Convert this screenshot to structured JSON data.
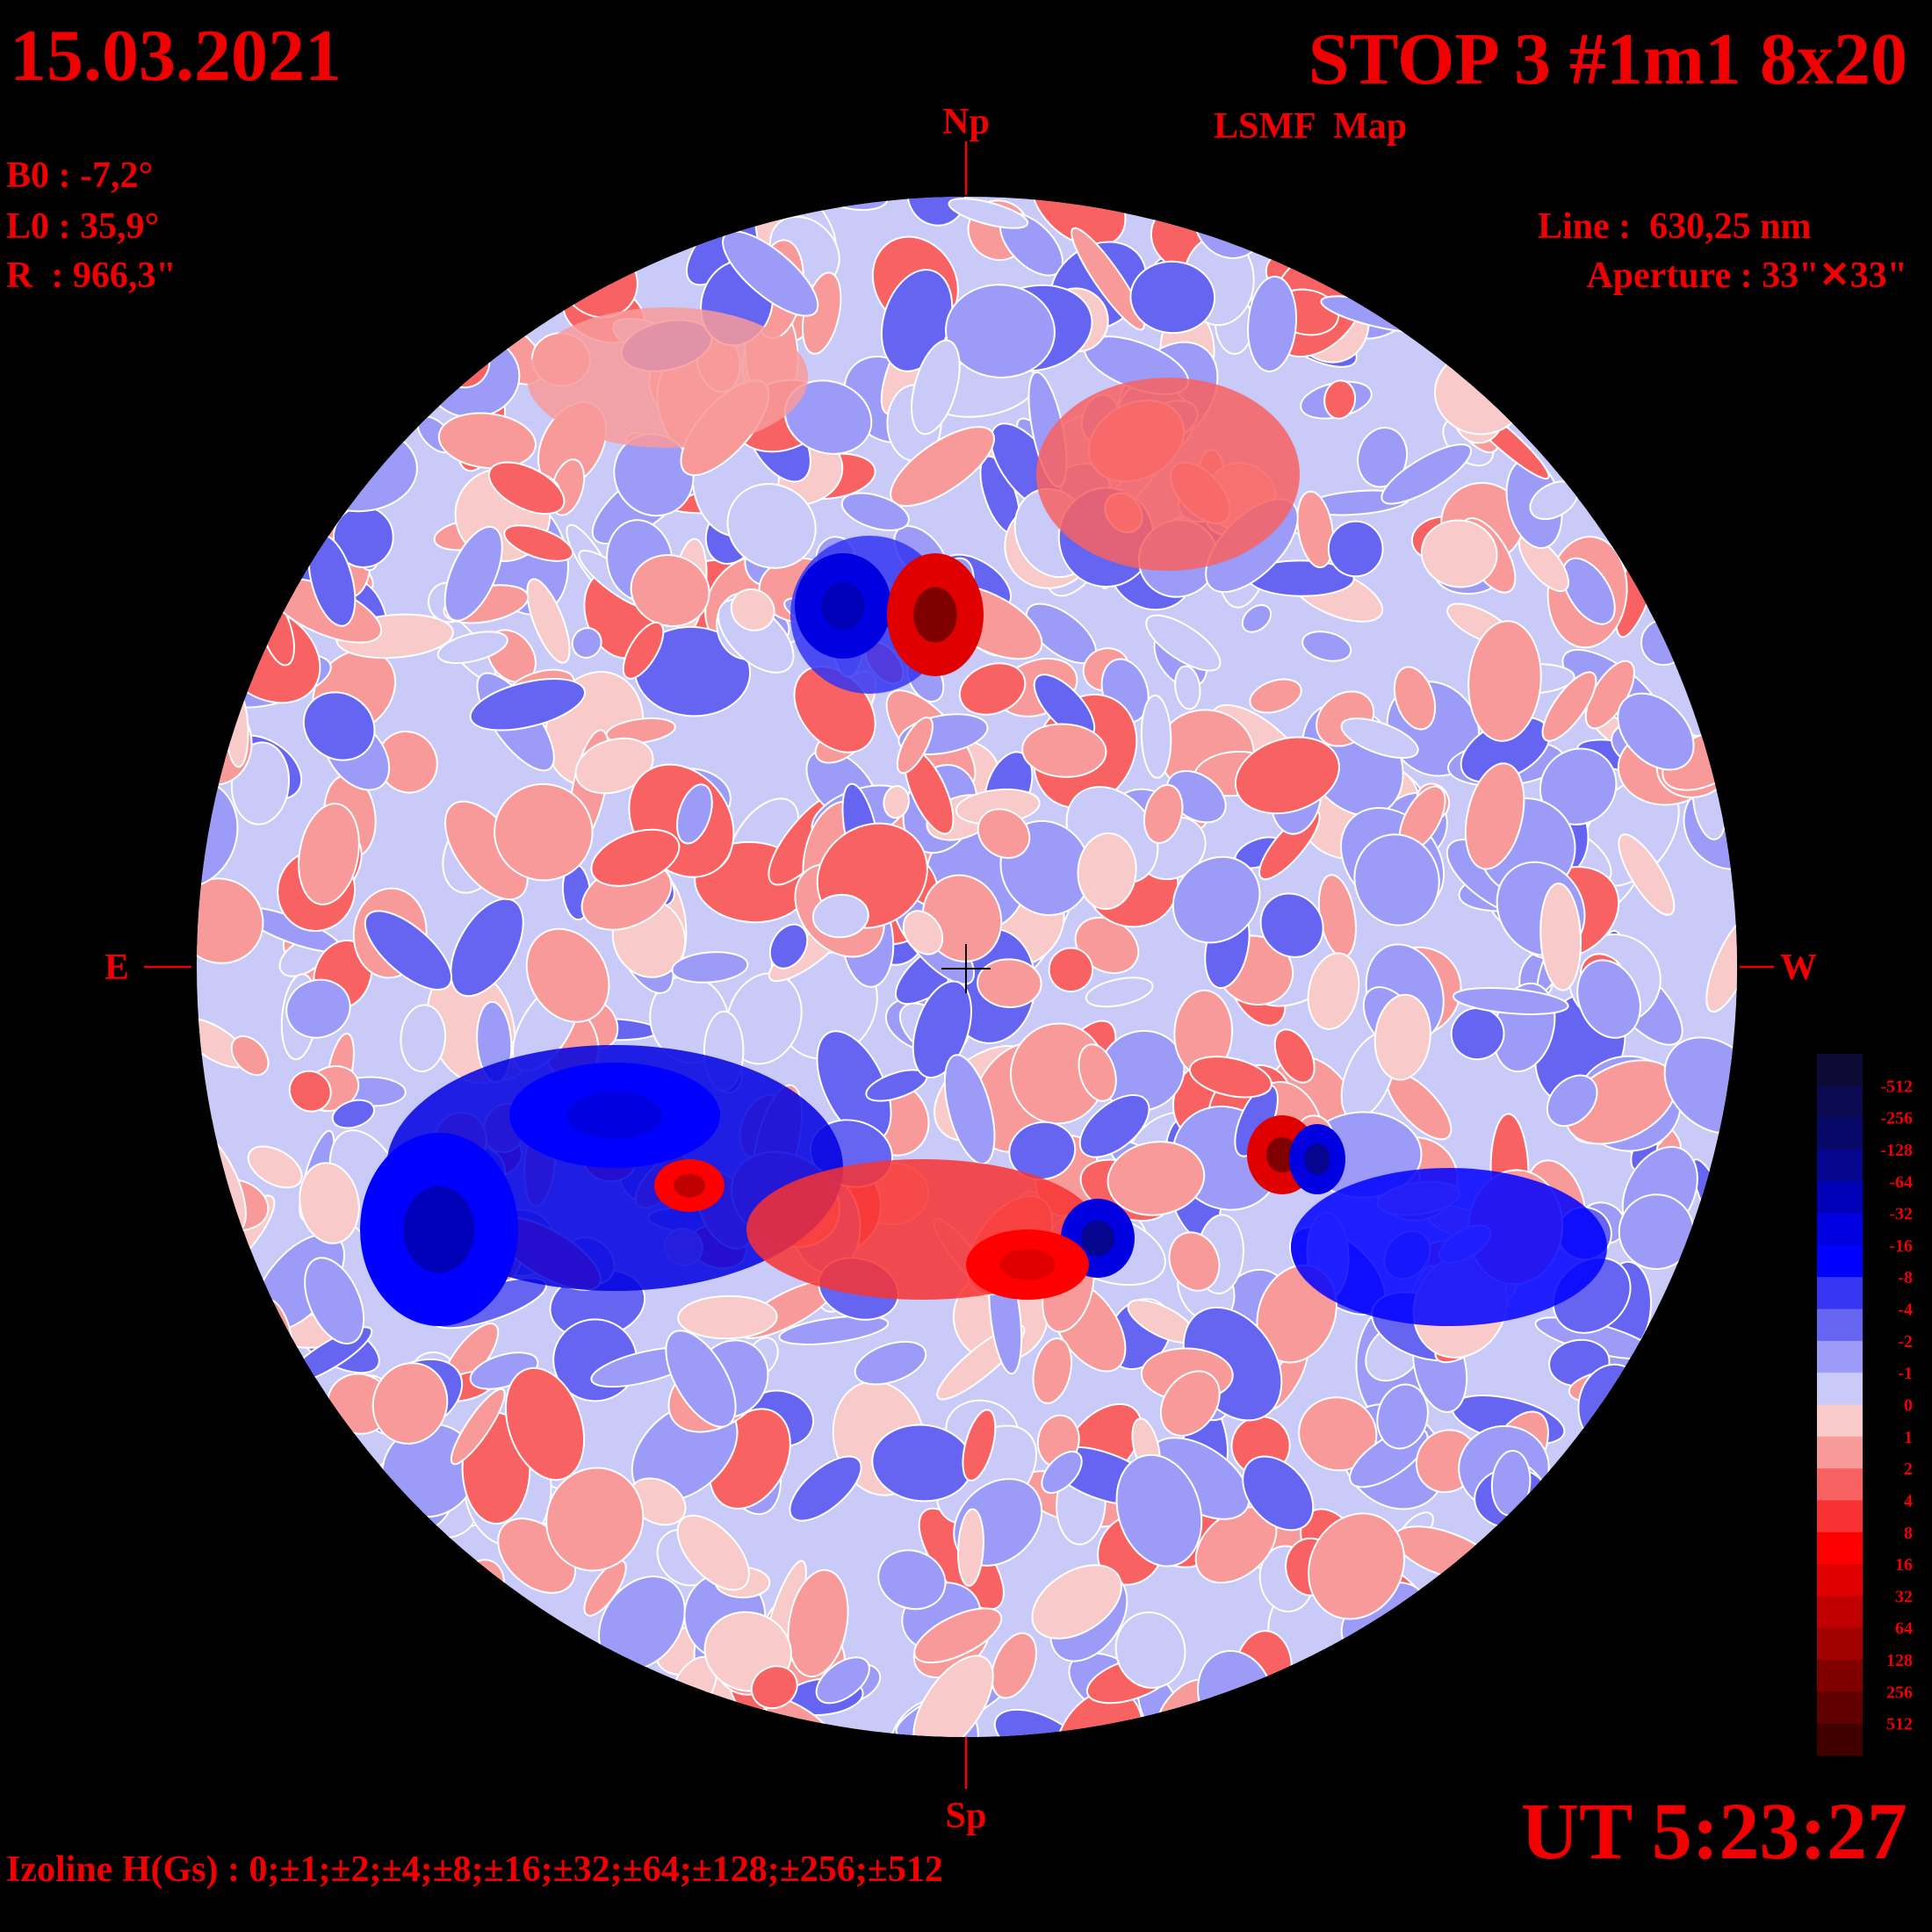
{
  "header": {
    "date": "15.03.2021",
    "title": "STOP 3 #1m1 8x20",
    "subtitle": "LSMF  Map"
  },
  "params": {
    "b0": "B0 : -7,2°",
    "l0": "L0 : 35,9°",
    "r": "R  : 966,3\""
  },
  "instrument": {
    "line": "Line :  630,25 nm",
    "aperture": "Aperture : 33\"✕33\""
  },
  "directions": {
    "north": "Np",
    "south": "Sp",
    "east": "E",
    "west": "W"
  },
  "time": "UT 5:23:27",
  "isolines": "Izoline H(Gs) : 0;±1;±2;±4;±8;±16;±32;±64;±128;±256;±512",
  "colorbar": {
    "labels": [
      "-512",
      "-256",
      "-128",
      "-64",
      "-32",
      "-16",
      "-8",
      "-4",
      "-2",
      "-1",
      "0",
      "1",
      "2",
      "4",
      "8",
      "16",
      "32",
      "64",
      "128",
      "256",
      "512"
    ],
    "colors": [
      "#0d0a35",
      "#0b0a50",
      "#080868",
      "#050590",
      "#0000b8",
      "#0000e0",
      "#0000ff",
      "#3535f2",
      "#6565f2",
      "#9c9cf8",
      "#cacaf8",
      "#f8caca",
      "#f89a9a",
      "#f86262",
      "#f83232",
      "#ff0000",
      "#e00000",
      "#c00000",
      "#a00000",
      "#800000",
      "#600000",
      "#400000"
    ]
  }
}
